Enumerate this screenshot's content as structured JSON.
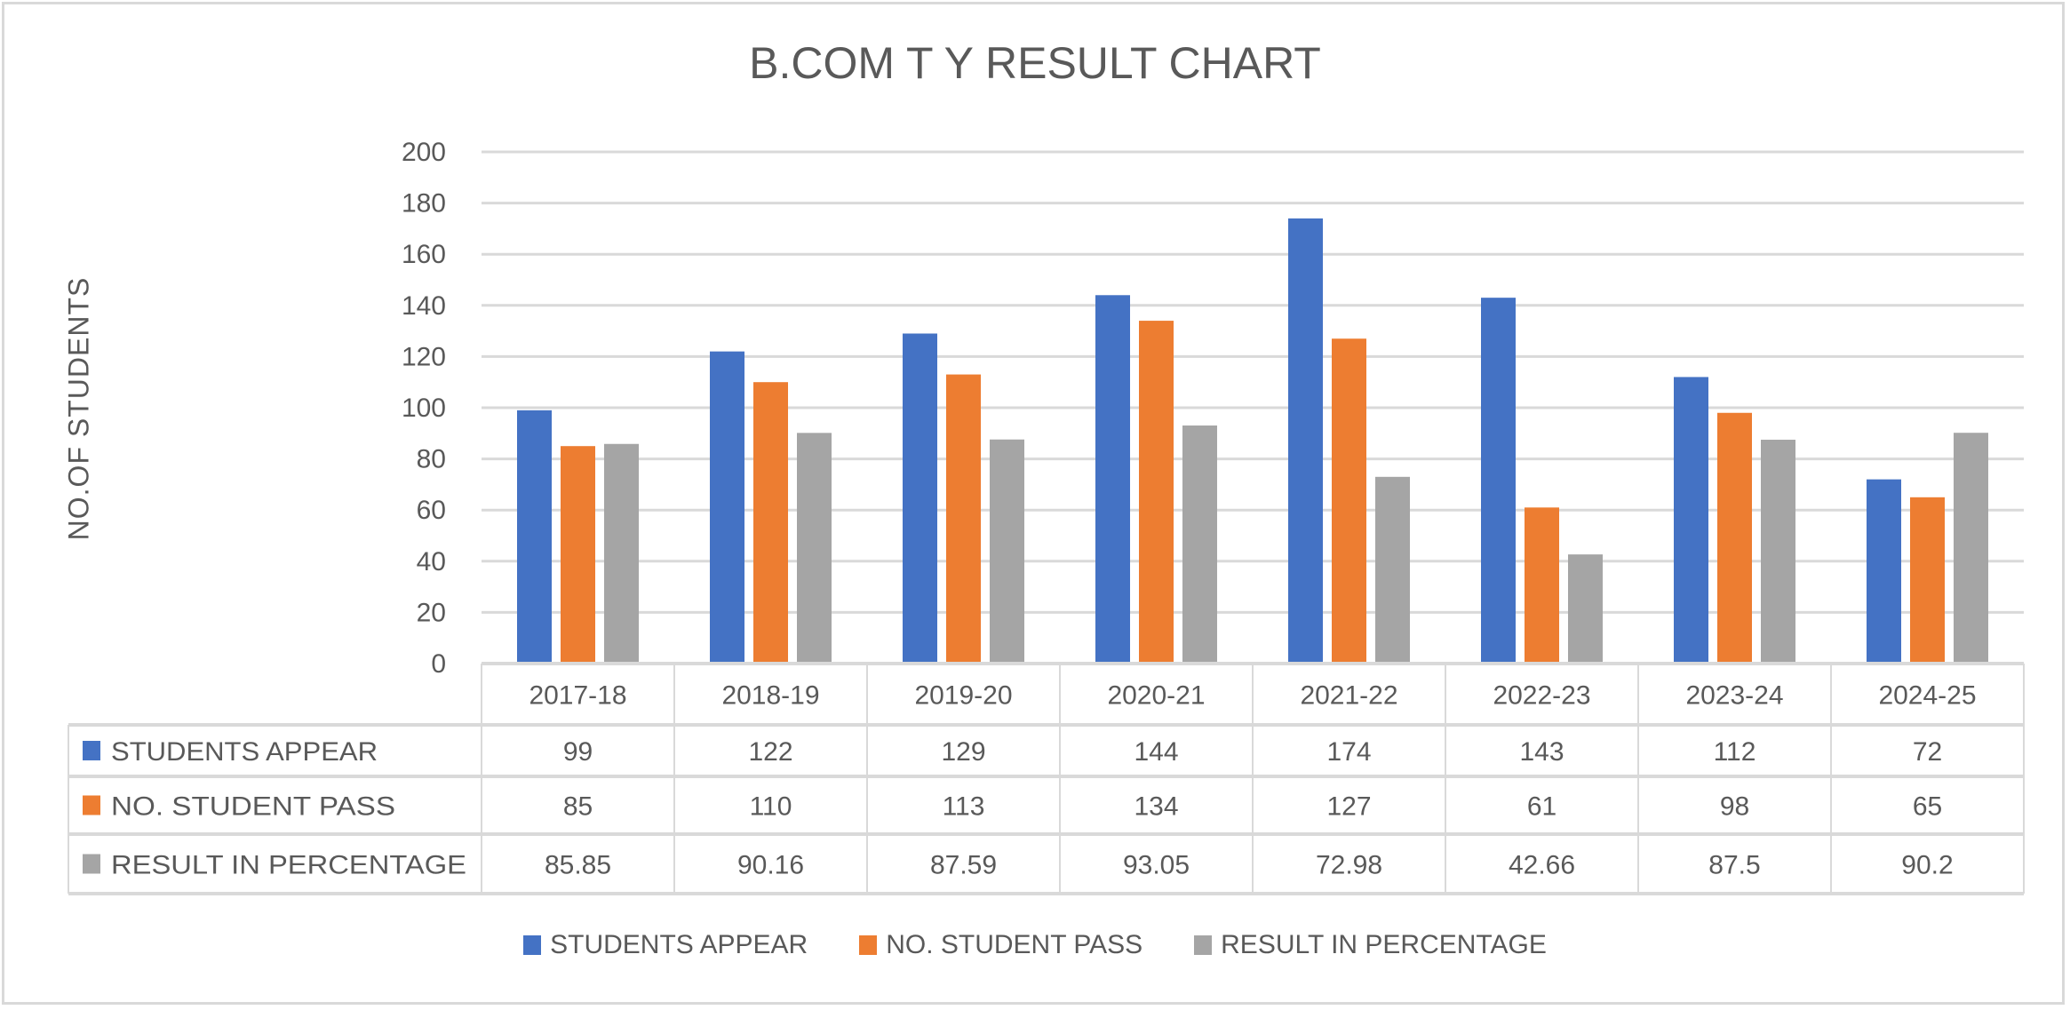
{
  "chart_data": {
    "type": "bar",
    "title": "B.COM T Y RESULT CHART",
    "xlabel": "",
    "ylabel": "NO.OF STUDENTS",
    "ylim": [
      0,
      200
    ],
    "yticks": [
      0,
      20,
      40,
      60,
      80,
      100,
      120,
      140,
      160,
      180,
      200
    ],
    "grid": true,
    "legend_position": "bottom",
    "data_table": true,
    "categories": [
      "2017-18",
      "2018-19",
      "2019-20",
      "2020-21",
      "2021-22",
      "2022-23",
      "2023-24",
      "2024-25"
    ],
    "series": [
      {
        "name": "STUDENTS APPEAR",
        "color": "#4472c4",
        "values": [
          99,
          122,
          129,
          144,
          174,
          143,
          112,
          72
        ]
      },
      {
        "name": "NO. STUDENT PASS",
        "color": "#ed7d31",
        "values": [
          85,
          110,
          113,
          134,
          127,
          61,
          98,
          65
        ]
      },
      {
        "name": "RESULT IN PERCENTAGE",
        "color": "#a5a5a5",
        "values": [
          85.85,
          90.16,
          87.59,
          93.05,
          72.98,
          42.66,
          87.5,
          90.2
        ]
      }
    ]
  }
}
